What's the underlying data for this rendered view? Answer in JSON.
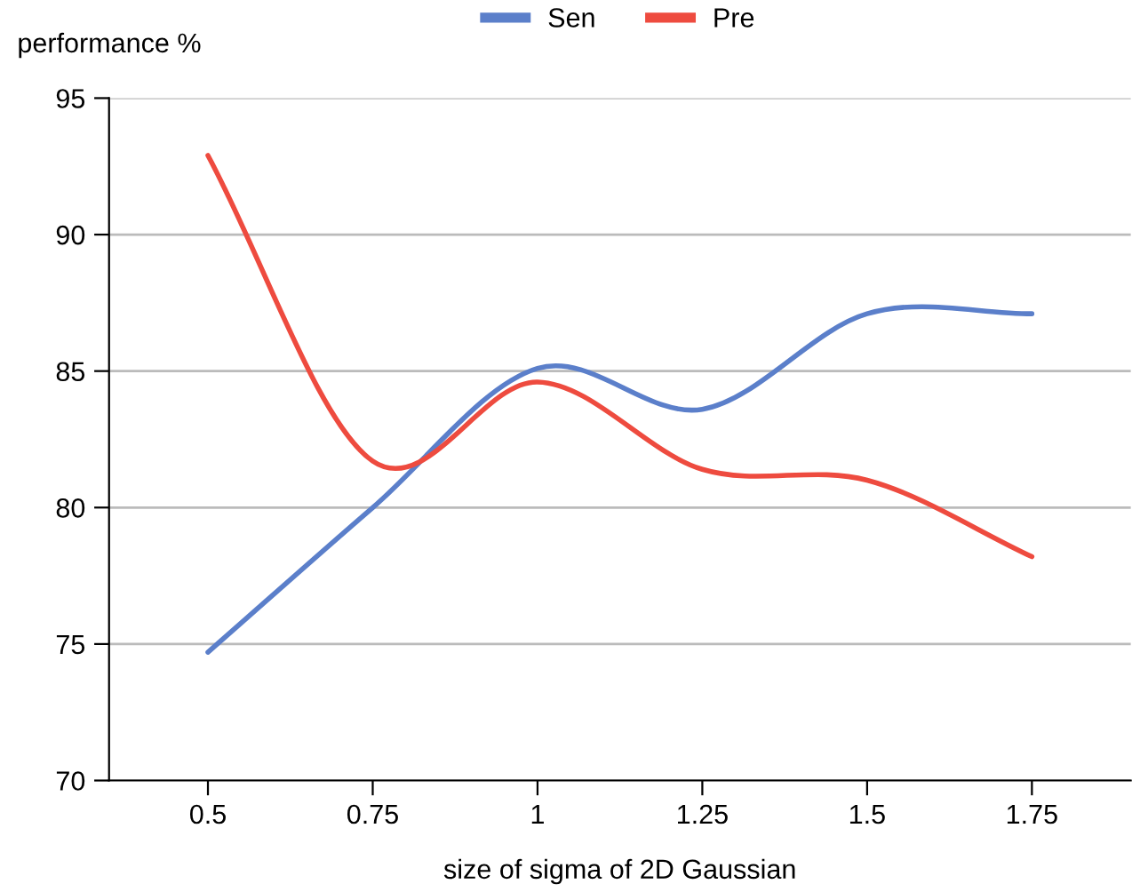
{
  "chart_data": {
    "type": "line",
    "xlabel": "size of sigma of 2D Gaussian",
    "ylabel": "performance %",
    "categories": [
      "0.5",
      "0.75",
      "1",
      "1.25",
      "1.5",
      "1.75"
    ],
    "series": [
      {
        "name": "Sen",
        "color": "#5b7fca",
        "values": [
          74.7,
          80.0,
          85.1,
          83.6,
          87.1,
          87.1
        ]
      },
      {
        "name": "Pre",
        "color": "#ee4b3f",
        "values": [
          92.9,
          81.7,
          84.6,
          81.4,
          81.0,
          78.2
        ]
      }
    ],
    "ylim": [
      70,
      95
    ],
    "yticks": [
      70,
      75,
      80,
      85,
      90,
      95
    ],
    "grid": "y",
    "legend": "top",
    "marker": "none",
    "line_style": "solid"
  }
}
